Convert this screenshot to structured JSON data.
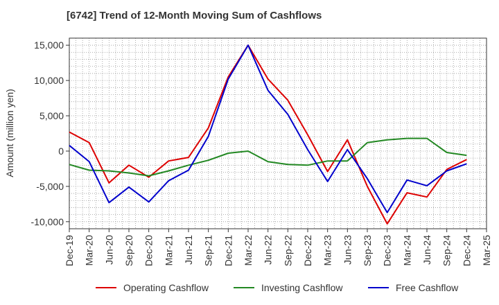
{
  "chart_data": {
    "type": "line",
    "title": "[6742]  Trend of 12-Month Moving Sum of Cashflows",
    "ylabel": "Amount (million yen)",
    "xlabel": "",
    "ylim": [
      -11000,
      16000
    ],
    "yticks": [
      15000,
      10000,
      5000,
      0,
      -5000,
      -10000
    ],
    "ytick_labels": [
      "15,000",
      "10,000",
      "5,000",
      "0",
      "-5,000",
      "-10,000"
    ],
    "grid": true,
    "legend_position": "bottom",
    "categories": [
      "Dec-19",
      "Mar-20",
      "Jun-20",
      "Sep-20",
      "Dec-20",
      "Mar-21",
      "Jun-21",
      "Sep-21",
      "Dec-21",
      "Mar-22",
      "Jun-22",
      "Sep-22",
      "Dec-22",
      "Mar-23",
      "Jun-23",
      "Sep-23",
      "Dec-23",
      "Mar-24",
      "Jun-24",
      "Sep-24",
      "Dec-24",
      "Mar-25"
    ],
    "series": [
      {
        "name": "Operating Cashflow",
        "color": "#dd0000",
        "values": [
          2700,
          1200,
          -4500,
          -2000,
          -3700,
          -1400,
          -900,
          3300,
          10500,
          15000,
          10200,
          7200,
          2300,
          -2900,
          1600,
          -5000,
          -10300,
          -5900,
          -6500,
          -2600,
          -1200,
          null
        ]
      },
      {
        "name": "Investing Cashflow",
        "color": "#228822",
        "values": [
          -1900,
          -2700,
          -2800,
          -3100,
          -3500,
          -2800,
          -2000,
          -1300,
          -300,
          0,
          -1500,
          -1900,
          -2000,
          -1400,
          -1400,
          1200,
          1600,
          1800,
          1800,
          -200,
          -600,
          null
        ]
      },
      {
        "name": "Free Cashflow",
        "color": "#0000cc",
        "values": [
          800,
          -1500,
          -7300,
          -5100,
          -7200,
          -4200,
          -2700,
          2100,
          10200,
          15000,
          8600,
          5200,
          200,
          -4300,
          200,
          -3900,
          -8700,
          -4100,
          -4900,
          -2800,
          -1800,
          null
        ]
      }
    ]
  }
}
